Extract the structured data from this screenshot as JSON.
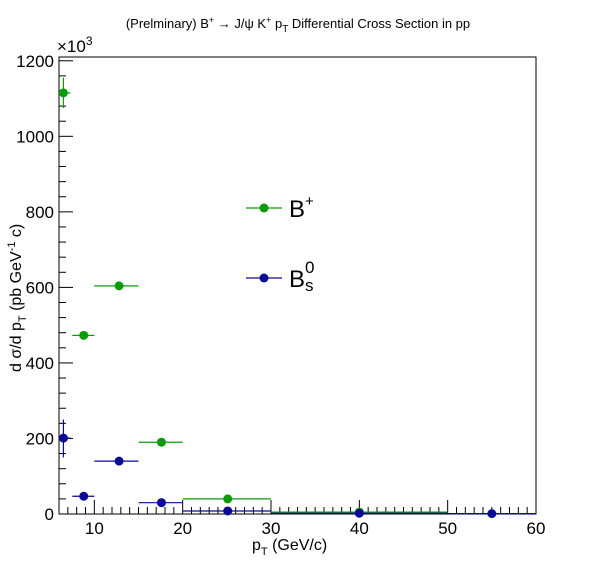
{
  "chart_data": {
    "type": "scatter",
    "title": {
      "pre": "(Prelminary) B",
      "sup1": "+",
      "arrow": " → J/ψ K",
      "sup2": "+",
      "mid": " p",
      "sub": "T",
      "post": " Differential Cross Section in pp"
    },
    "xlabel": {
      "main": "p",
      "sub": "T",
      "rest": " (GeV/c)"
    },
    "ylabel": {
      "a": "d σ/d p",
      "sub": "T",
      "b": " (pb GeV",
      "sup": "-1",
      "c": " c)"
    },
    "y_multiplier": {
      "base": "×10",
      "exp": "3"
    },
    "xlim": [
      6,
      60
    ],
    "ylim": [
      0,
      1210
    ],
    "x_ticks": [
      10,
      20,
      30,
      40,
      50,
      60
    ],
    "y_ticks": [
      0,
      200,
      400,
      600,
      800,
      1000,
      1200
    ],
    "grid": false,
    "legend_position": "center",
    "series": [
      {
        "name": "B",
        "name_sup": "+",
        "color": "#0a9b0a",
        "points": [
          {
            "x": 6.5,
            "xlo": 5.8,
            "xhi": 7.3,
            "y": 1115,
            "ylo": 1075,
            "yhi": 1155
          },
          {
            "x": 8.8,
            "xlo": 7.5,
            "xhi": 10.0,
            "y": 473,
            "ylo": 468,
            "yhi": 478
          },
          {
            "x": 12.8,
            "xlo": 10.0,
            "xhi": 15.0,
            "y": 604,
            "ylo": 600,
            "yhi": 608
          },
          {
            "x": 17.6,
            "xlo": 15.0,
            "xhi": 20.0,
            "y": 190,
            "ylo": 188,
            "yhi": 192
          },
          {
            "x": 25.1,
            "xlo": 20.0,
            "xhi": 30.0,
            "y": 40,
            "ylo": 39,
            "yhi": 41
          },
          {
            "x": 40.0,
            "xlo": 30.0,
            "xhi": 50.0,
            "y": 5,
            "ylo": 4,
            "yhi": 6
          }
        ]
      },
      {
        "name": "B",
        "name_sub": "s",
        "name_sup": "0",
        "color": "#0a0a96",
        "points": [
          {
            "x": 6.5,
            "xlo": 5.8,
            "xhi": 7.3,
            "y": 201,
            "ylo": 150,
            "yhi": 250
          },
          {
            "x": 8.8,
            "xlo": 7.5,
            "xhi": 10.0,
            "y": 47,
            "ylo": 45,
            "yhi": 49
          },
          {
            "x": 12.8,
            "xlo": 10.0,
            "xhi": 15.0,
            "y": 140,
            "ylo": 138,
            "yhi": 142
          },
          {
            "x": 17.6,
            "xlo": 15.0,
            "xhi": 20.0,
            "y": 30,
            "ylo": 29,
            "yhi": 31
          },
          {
            "x": 25.1,
            "xlo": 20.0,
            "xhi": 30.0,
            "y": 8,
            "ylo": 7,
            "yhi": 9
          },
          {
            "x": 40.0,
            "xlo": 30.0,
            "xhi": 50.0,
            "y": 2,
            "ylo": 1,
            "yhi": 3
          },
          {
            "x": 55.0,
            "xlo": 50.0,
            "xhi": 60.0,
            "y": 1,
            "ylo": 0,
            "yhi": 2
          }
        ]
      }
    ]
  }
}
